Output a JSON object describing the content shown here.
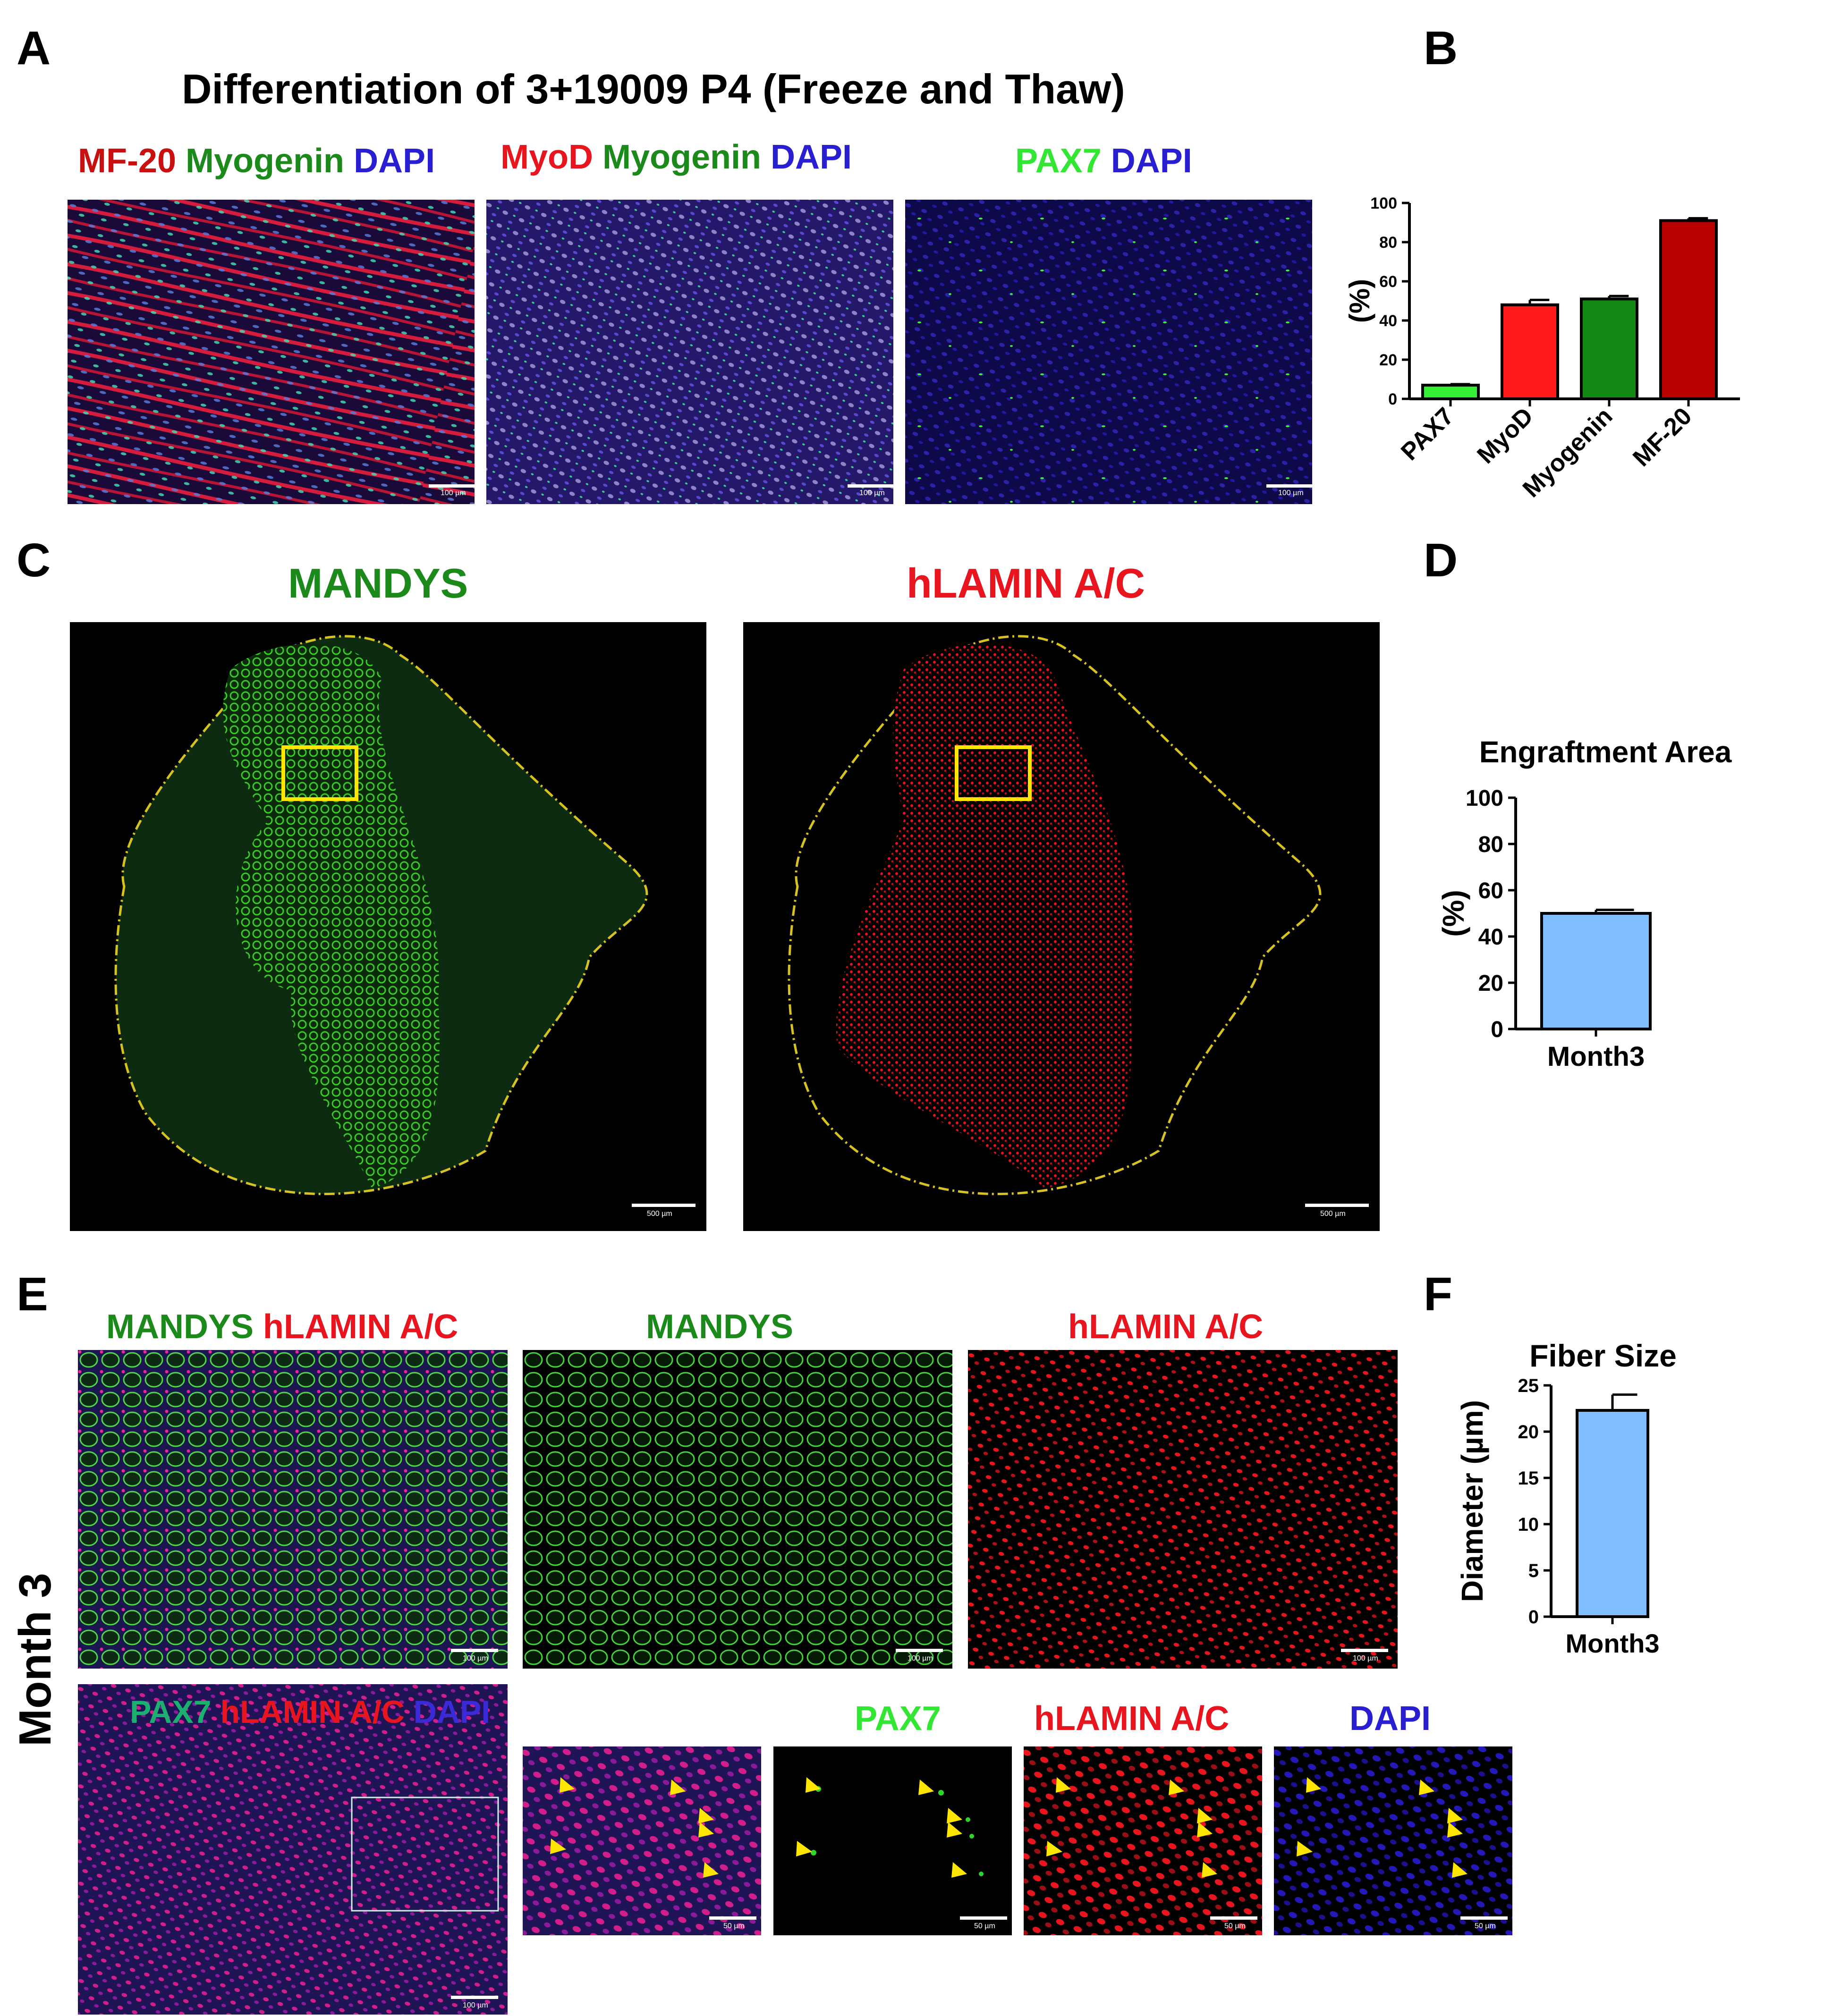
{
  "panels": {
    "A": "A",
    "B": "B",
    "C": "C",
    "D": "D",
    "E": "E",
    "F": "F"
  },
  "panelA": {
    "title": "Differentiation of 3+19009  P4 (Freeze and Thaw)",
    "img1": {
      "p1": "MF-20",
      "p2": "Myogenin",
      "p3": "DAPI",
      "scale": "100 µm"
    },
    "img2": {
      "p1": "MyoD",
      "p2": "Myogenin",
      "p3": "DAPI",
      "scale": "100 µm"
    },
    "img3": {
      "p1": "PAX7",
      "p2": "DAPI",
      "scale": "100 µm"
    }
  },
  "panelC": {
    "left_label": "MANDYS",
    "right_label": "hLAMIN A/C",
    "scale": "500 µm"
  },
  "panelE": {
    "side_label": "Month 3",
    "top1": {
      "p1": "MANDYS",
      "p2": "hLAMIN A/C"
    },
    "top2": "MANDYS",
    "top3": "hLAMIN A/C",
    "bottom_overlay": {
      "p1": "PAX7",
      "p2": "hLAMIN A/C",
      "p3": "DAPI"
    },
    "zoom_labels": {
      "pax7": "PAX7",
      "lamin": "hLAMIN A/C",
      "dapi": "DAPI"
    },
    "scale_100": "100 µm",
    "scale_50": "50 µm"
  },
  "colors": {
    "green": "#1b8a1b",
    "red": "#e8141e",
    "blue": "#2a1fd0",
    "bright_green": "#33e633"
  },
  "chart_data": [
    {
      "type": "bar",
      "panel": "B",
      "categories": [
        "PAX7",
        "MyoD",
        "Myogenin",
        "MF-20"
      ],
      "values": [
        7,
        48,
        51,
        91
      ],
      "errors": [
        0.5,
        2.5,
        1.5,
        1.2
      ],
      "colors": [
        "#33ee33",
        "#ff1a1a",
        "#118811",
        "#bb0000"
      ],
      "ylabel": "(%)",
      "ylim": [
        0,
        100
      ],
      "yticks": [
        0,
        20,
        40,
        60,
        80,
        100
      ]
    },
    {
      "type": "bar",
      "panel": "D",
      "title": "Engraftment Area",
      "categories": [
        "Month3"
      ],
      "values": [
        50
      ],
      "errors": [
        1.5
      ],
      "colors": [
        "#7fbfff"
      ],
      "ylabel": "(%)",
      "ylim": [
        0,
        100
      ],
      "yticks": [
        0,
        20,
        40,
        60,
        80,
        100
      ]
    },
    {
      "type": "bar",
      "panel": "F",
      "title": "Fiber Size",
      "categories": [
        "Month3"
      ],
      "values": [
        22.3
      ],
      "errors": [
        1.7
      ],
      "colors": [
        "#7fbfff"
      ],
      "ylabel": "Diameter (µm)",
      "ylim": [
        0,
        25
      ],
      "yticks": [
        0,
        5,
        10,
        15,
        20,
        25
      ]
    }
  ]
}
